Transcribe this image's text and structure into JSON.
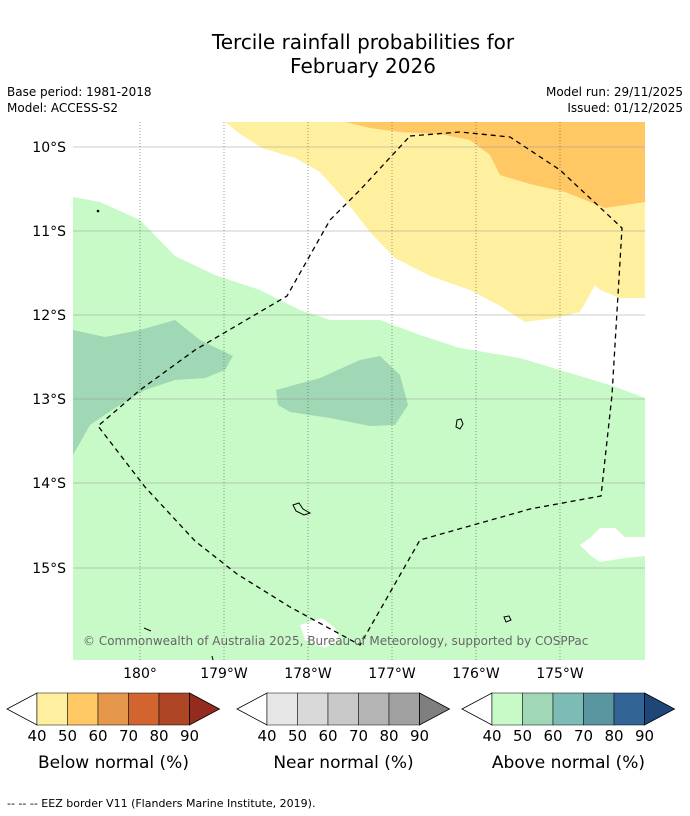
{
  "title": {
    "line1": "Tercile rainfall probabilities for",
    "line2": "February 2026"
  },
  "meta": {
    "base_period": "Base period: 1981-2018",
    "model": "Model: ACCESS-S2",
    "model_run": "Model run: 29/11/2025",
    "issued": "Issued: 01/12/2025"
  },
  "map": {
    "lat_labels": [
      "10°S",
      "11°S",
      "12°S",
      "13°S",
      "14°S",
      "15°S"
    ],
    "lon_labels": [
      "180°",
      "179°W",
      "178°W",
      "177°W",
      "176°W",
      "175°W"
    ],
    "copyright": "© Commonwealth of Australia 2025, Bureau of Meteorology, supported by COSPPac"
  },
  "legend": {
    "tick_values": [
      "40",
      "50",
      "60",
      "70",
      "80",
      "90"
    ],
    "below": {
      "label": "Below normal (%)",
      "colors": [
        "#fff0a0",
        "#ffc864",
        "#e4964b",
        "#d26430",
        "#ae4625",
        "#932c1e"
      ]
    },
    "near": {
      "label": "Near normal (%)",
      "colors": [
        "#e6e6e6",
        "#d9d9d9",
        "#c8c8c8",
        "#b4b4b4",
        "#a0a0a0",
        "#7f7f7f"
      ]
    },
    "above": {
      "label": "Above normal (%)",
      "colors": [
        "#c8fac8",
        "#a0d7b4",
        "#7dbcb4",
        "#5a96a0",
        "#326496",
        "#1e4678"
      ]
    }
  },
  "footer": "--  --  -- EEZ border V11 (Flanders Marine Institute, 2019)."
}
